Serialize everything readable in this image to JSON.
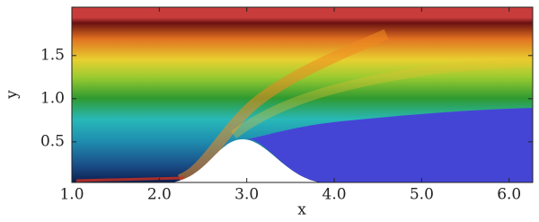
{
  "chart_data": {
    "type": "field",
    "x_label": "x",
    "y_label": "y",
    "xlim": [
      1.0,
      6.27
    ],
    "ylim": [
      0.03,
      2.06
    ],
    "xticks": [
      {
        "value": 1,
        "label": "1.0"
      },
      {
        "value": 2,
        "label": "2.0"
      },
      {
        "value": 3,
        "label": "3.0"
      },
      {
        "value": 4,
        "label": "4.0"
      },
      {
        "value": 5,
        "label": "5.0"
      },
      {
        "value": 6,
        "label": "6.0"
      }
    ],
    "yticks": [
      0.5,
      {
        "value": 1,
        "label": "1.0"
      },
      1.5
    ]
  }
}
